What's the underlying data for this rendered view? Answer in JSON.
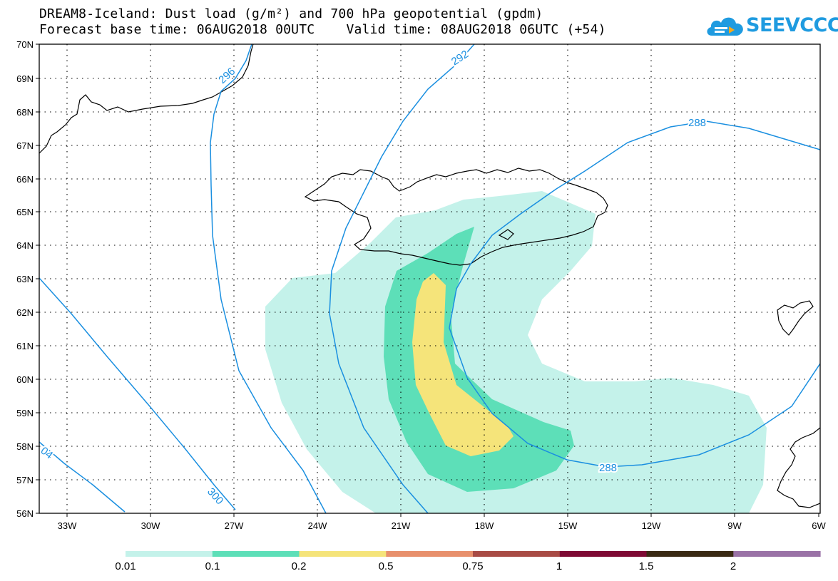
{
  "title_line1": "DREAM8-Iceland: Dust load (g/m²) and 700 hPa geopotential (gpdm)",
  "title_line2": "Forecast base time: 06AUG2018 00UTC    Valid time: 08AUG2018 06UTC (+54)",
  "logo_text": "SEEVCCC",
  "logo_icon": "cloud-icon",
  "lat_labels": [
    "70N",
    "69N",
    "68N",
    "67N",
    "66N",
    "65N",
    "64N",
    "63N",
    "62N",
    "61N",
    "60N",
    "59N",
    "58N",
    "57N",
    "56N"
  ],
  "lon_labels": [
    "33W",
    "30W",
    "27W",
    "24W",
    "21W",
    "18W",
    "15W",
    "12W",
    "9W",
    "6W"
  ],
  "contour_labels": [
    "296",
    "292",
    "288",
    "288",
    "300",
    "04"
  ],
  "colorbar": {
    "colors": [
      "#c4f2ea",
      "#5ddfb8",
      "#f5e47a",
      "#e8906c",
      "#a84b45",
      "#7e0a34",
      "#3a2a14",
      "#9a72a6"
    ],
    "labels": [
      "0.01",
      "0.1",
      "0.2",
      "0.5",
      "0.75",
      "1",
      "1.5",
      "2"
    ]
  },
  "colors": {
    "contour": "#1a8fe0",
    "coast": "#000000",
    "brand": "#1f9be0"
  }
}
